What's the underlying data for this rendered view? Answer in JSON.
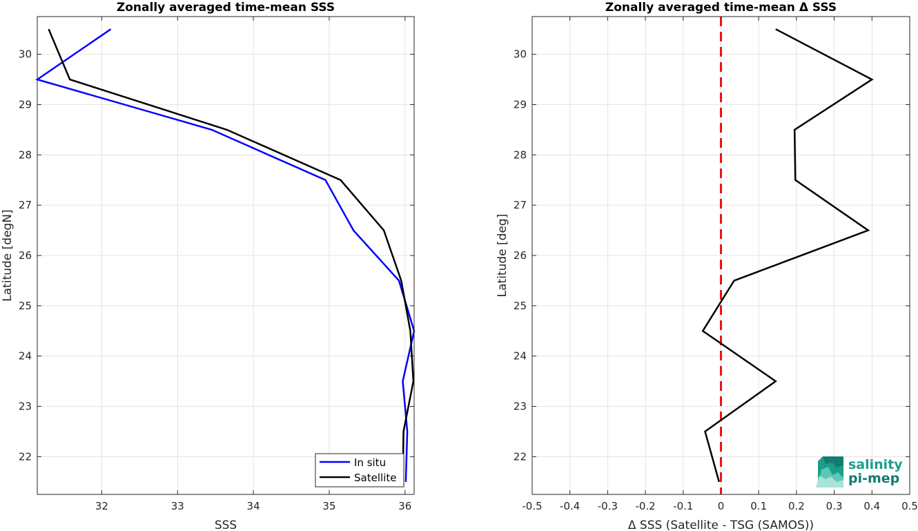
{
  "chart_data": [
    {
      "type": "line",
      "title": "Zonally averaged time-mean SSS",
      "xlabel": "SSS",
      "ylabel": "Latitude [degN]",
      "xlim": [
        31.15,
        36.12
      ],
      "ylim": [
        21.25,
        30.75
      ],
      "xticks": [
        "32",
        "33",
        "34",
        "35",
        "36"
      ],
      "yticks": [
        "22",
        "23",
        "24",
        "25",
        "26",
        "27",
        "28",
        "29",
        "30"
      ],
      "grid": true,
      "legend_position": "bottom-right",
      "series": [
        {
          "name": "In situ",
          "color": "#0000ff",
          "x": [
            32.12,
            31.15,
            33.45,
            34.95,
            35.32,
            35.92,
            36.12,
            35.97,
            36.03,
            36.01
          ],
          "y": [
            30.5,
            29.5,
            28.5,
            27.5,
            26.5,
            25.5,
            24.5,
            23.5,
            22.5,
            21.5
          ]
        },
        {
          "name": "Satellite",
          "color": "#000000",
          "x": [
            31.3,
            31.58,
            33.65,
            35.15,
            35.72,
            35.95,
            36.07,
            36.11,
            35.98,
            35.97
          ],
          "y": [
            30.5,
            29.5,
            28.5,
            27.5,
            26.5,
            25.5,
            24.5,
            23.5,
            22.5,
            21.5
          ]
        }
      ]
    },
    {
      "type": "line",
      "title": "Zonally averaged time-mean Δ SSS",
      "xlabel": "Δ SSS (Satellite - TSG (SAMOS))",
      "ylabel": "Latitude [deg]",
      "xlim": [
        -0.5,
        0.5
      ],
      "ylim": [
        21.25,
        30.75
      ],
      "xticks": [
        "-0.5",
        "-0.4",
        "-0.3",
        "-0.2",
        "-0.1",
        "0",
        "0.1",
        "0.2",
        "0.3",
        "0.4",
        "0.5"
      ],
      "yticks": [
        "22",
        "23",
        "24",
        "25",
        "26",
        "27",
        "28",
        "29",
        "30"
      ],
      "grid": true,
      "reference_line": {
        "x": 0,
        "color": "#ee1111",
        "style": "dashed"
      },
      "series": [
        {
          "color": "#000000",
          "x": [
            0.145,
            0.4,
            0.195,
            0.197,
            0.39,
            0.035,
            -0.048,
            0.145,
            -0.042,
            -0.005
          ],
          "y": [
            30.5,
            29.5,
            28.5,
            27.5,
            26.5,
            25.5,
            24.5,
            23.5,
            22.5,
            21.5
          ]
        }
      ]
    }
  ],
  "logo": {
    "line1": "salinity",
    "line2": "pi-mep",
    "color": "#1a9e8c"
  }
}
